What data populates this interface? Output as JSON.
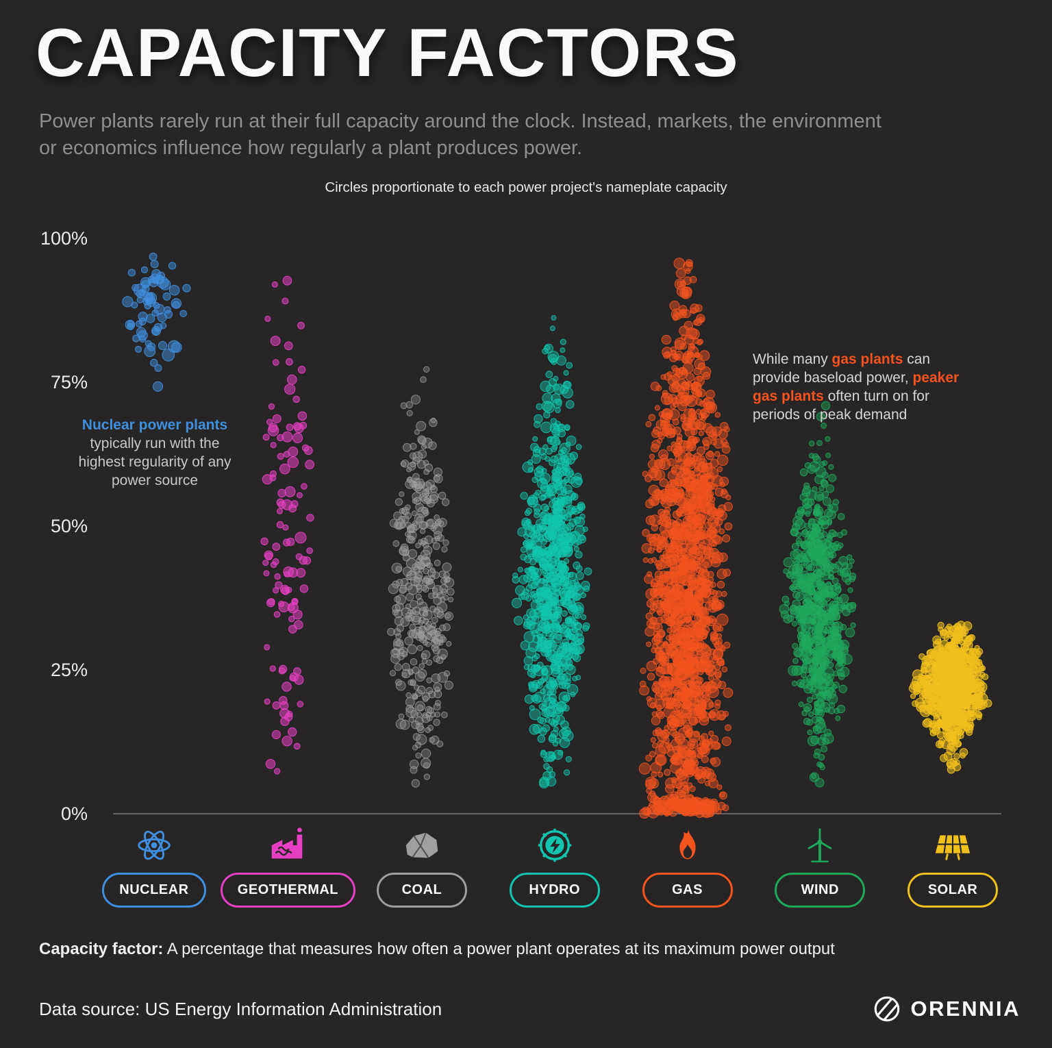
{
  "page": {
    "title": "CAPACITY FACTORS",
    "subtitle": "Power plants rarely run at their full capacity around the clock. Instead, markets, the environment or economics influence how regularly a plant produces power.",
    "chart_note": "Circles proportionate to each power project's nameplate capacity",
    "definition_label": "Capacity factor:",
    "definition_text": " A percentage that measures how often a power plant operates at its maximum power output",
    "data_source": "Data source: US Energy Information Administration",
    "brand": "ORENNIA",
    "colors": {
      "background": "#272525",
      "title_text": "#fafafa",
      "muted_text": "#8f8f8f"
    }
  },
  "annotations": {
    "nuclear": {
      "highlight": "Nuclear power plants",
      "rest": " typically run with the highest regularity of any power source"
    },
    "gas": {
      "p1": "While many ",
      "h1": "gas plants",
      "p2": " can provide baseload power, ",
      "h2": "peaker gas plants",
      "p3": " often turn on for periods of peak demand"
    }
  },
  "chart_data": {
    "type": "scatter",
    "subtype": "beeswarm",
    "title": "Circles proportionate to each power project's nameplate capacity",
    "ylabel": "Capacity factor",
    "ylim": [
      0,
      100
    ],
    "yticks": [
      "100%",
      "75%",
      "50%",
      "25%",
      "0%"
    ],
    "grid": false,
    "legend_position": "bottom",
    "categories": [
      "NUCLEAR",
      "GEOTHERMAL",
      "COAL",
      "HYDRO",
      "GAS",
      "WIND",
      "SOLAR"
    ],
    "series": [
      {
        "name": "NUCLEAR",
        "icon": "atom-icon",
        "color": "#3f8fe0",
        "summary": "Tight cluster of plants running 72-97%, typically ~88%",
        "distribution": {
          "count": 68,
          "y_mean": 88,
          "y_sd": 4.5,
          "y_min": 72,
          "y_max": 97,
          "half_width": 58,
          "shape": "spindle",
          "env_floor": 0.45,
          "r_min": 4.5,
          "r_max": 9,
          "opacity": 0.5,
          "pile_floor": false
        }
      },
      {
        "name": "GEOTHERMAL",
        "icon": "geothermal-plant-icon",
        "color": "#e63fc3",
        "summary": "Sparse plants scattered roughly 7-93%, centered ~47%",
        "distribution": {
          "count": 115,
          "y_mean": 47,
          "y_sd": 23,
          "y_min": 7,
          "y_max": 93,
          "half_width": 42,
          "shape": "spindle",
          "env_floor": 0.55,
          "r_min": 4,
          "r_max": 8,
          "opacity": 0.55,
          "pile_floor": false
        }
      },
      {
        "name": "COAL",
        "icon": "coal-rock-icon",
        "color": "#9f9f9f",
        "summary": "Moderate density 2-78%, centered ~38%",
        "distribution": {
          "count": 380,
          "y_mean": 38,
          "y_sd": 16,
          "y_min": 2,
          "y_max": 78,
          "half_width": 52,
          "shape": "spindle",
          "env_floor": 0.35,
          "r_min": 3.5,
          "r_max": 7.5,
          "opacity": 0.35,
          "pile_floor": false
        }
      },
      {
        "name": "HYDRO",
        "icon": "hydro-turbine-icon",
        "color": "#12c5ae",
        "summary": "Dense column 3-91%, centered ~42%",
        "distribution": {
          "count": 780,
          "y_mean": 42,
          "y_sd": 15.5,
          "y_min": 3,
          "y_max": 91,
          "half_width": 58,
          "shape": "spindle",
          "env_floor": 0.3,
          "r_min": 3.5,
          "r_max": 8,
          "opacity": 0.45,
          "pile_floor": false
        }
      },
      {
        "name": "GAS",
        "icon": "flame-icon",
        "color": "#f3531f",
        "summary": "Very dense full-range column 0-97%, many peakers near 0%",
        "distribution": {
          "count": 1500,
          "y_mean": 38,
          "y_sd": 26,
          "y_min": 0,
          "y_max": 97,
          "half_width": 66,
          "shape": "column",
          "env_floor": 0.2,
          "r_min": 3.5,
          "r_max": 8.5,
          "opacity": 0.48,
          "pile_floor": true
        }
      },
      {
        "name": "WIND",
        "icon": "wind-turbine-icon",
        "color": "#1ea85c",
        "summary": "Dense cluster 4-72%, centered ~37%",
        "distribution": {
          "count": 680,
          "y_mean": 37,
          "y_sd": 11.5,
          "y_min": 4,
          "y_max": 72,
          "half_width": 56,
          "shape": "spindle",
          "env_floor": 0.3,
          "r_min": 3.5,
          "r_max": 7.5,
          "opacity": 0.45,
          "pile_floor": false
        }
      },
      {
        "name": "SOLAR",
        "icon": "solar-panel-icon",
        "color": "#f0c01d",
        "summary": "Compact dense blob 5-33%, centered ~22%",
        "distribution": {
          "count": 720,
          "y_mean": 22,
          "y_sd": 5,
          "y_min": 5,
          "y_max": 33,
          "half_width": 60,
          "shape": "spindle",
          "env_floor": 0.25,
          "r_min": 3.5,
          "r_max": 8,
          "opacity": 0.55,
          "pile_floor": false
        }
      }
    ]
  }
}
